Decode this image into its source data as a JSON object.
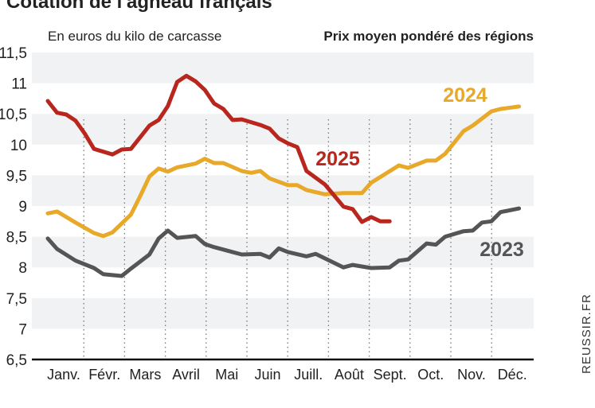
{
  "chart_data": {
    "type": "line",
    "title": "Cotation de l'agneau français",
    "subtitle_left": "En euros du kilo de carcasse",
    "subtitle_right": "Prix moyen pondéré des régions",
    "source": "REUSSIR.FR",
    "ylim": [
      6.5,
      11.5
    ],
    "yticks": [
      "6,5",
      "7",
      "7,5",
      "8",
      "8,5",
      "9",
      "9,5",
      "10",
      "10,5",
      "11",
      "11,5"
    ],
    "categories": [
      "Janv.",
      "Févr.",
      "Mars",
      "Avril",
      "Mai",
      "Juin",
      "Juill.",
      "Août",
      "Sept.",
      "Oct.",
      "Nov.",
      "Déc."
    ],
    "x_unit": "week",
    "grid": "alternating horizontal bands, dotted vertical month separators",
    "series": [
      {
        "name": "2025",
        "color": "#b8261e",
        "points": [
          [
            1,
            10.71
          ],
          [
            2,
            10.52
          ],
          [
            3,
            10.49
          ],
          [
            4,
            10.39
          ],
          [
            5,
            10.18
          ],
          [
            6,
            9.93
          ],
          [
            8,
            9.84
          ],
          [
            9,
            9.92
          ],
          [
            10,
            9.93
          ],
          [
            12,
            10.31
          ],
          [
            13,
            10.4
          ],
          [
            14,
            10.63
          ],
          [
            15,
            11.02
          ],
          [
            16,
            11.12
          ],
          [
            17,
            11.03
          ],
          [
            18,
            10.89
          ],
          [
            19,
            10.67
          ],
          [
            20,
            10.58
          ],
          [
            21,
            10.4
          ],
          [
            22,
            10.41
          ],
          [
            24,
            10.32
          ],
          [
            25,
            10.26
          ],
          [
            26,
            10.1
          ],
          [
            27,
            10.02
          ],
          [
            28,
            9.96
          ],
          [
            29,
            9.57
          ],
          [
            31,
            9.35
          ],
          [
            33,
            8.99
          ],
          [
            34,
            8.95
          ],
          [
            35,
            8.74
          ],
          [
            36,
            8.82
          ],
          [
            37,
            8.75
          ],
          [
            38,
            8.75
          ]
        ]
      },
      {
        "name": "2024",
        "color": "#e8a82a",
        "points": [
          [
            1,
            8.88
          ],
          [
            2,
            8.91
          ],
          [
            4,
            8.73
          ],
          [
            6,
            8.56
          ],
          [
            7,
            8.51
          ],
          [
            8,
            8.57
          ],
          [
            10,
            8.86
          ],
          [
            11,
            9.16
          ],
          [
            12,
            9.48
          ],
          [
            13,
            9.61
          ],
          [
            14,
            9.56
          ],
          [
            15,
            9.63
          ],
          [
            17,
            9.69
          ],
          [
            18,
            9.77
          ],
          [
            19,
            9.7
          ],
          [
            20,
            9.7
          ],
          [
            22,
            9.57
          ],
          [
            23,
            9.54
          ],
          [
            24,
            9.57
          ],
          [
            25,
            9.45
          ],
          [
            27,
            9.34
          ],
          [
            28,
            9.34
          ],
          [
            29,
            9.26
          ],
          [
            31,
            9.19
          ],
          [
            33,
            9.21
          ],
          [
            35,
            9.21
          ],
          [
            36,
            9.38
          ],
          [
            39,
            9.66
          ],
          [
            40,
            9.62
          ],
          [
            42,
            9.74
          ],
          [
            43,
            9.74
          ],
          [
            44,
            9.85
          ],
          [
            46,
            10.22
          ],
          [
            47,
            10.31
          ],
          [
            49,
            10.54
          ],
          [
            50,
            10.58
          ],
          [
            52,
            10.62
          ]
        ]
      },
      {
        "name": "2023",
        "color": "#555555",
        "points": [
          [
            1,
            8.47
          ],
          [
            2,
            8.3
          ],
          [
            4,
            8.11
          ],
          [
            6,
            7.99
          ],
          [
            7,
            7.89
          ],
          [
            9,
            7.86
          ],
          [
            10,
            7.98
          ],
          [
            12,
            8.21
          ],
          [
            13,
            8.47
          ],
          [
            14,
            8.6
          ],
          [
            15,
            8.48
          ],
          [
            17,
            8.51
          ],
          [
            18,
            8.38
          ],
          [
            19,
            8.33
          ],
          [
            21,
            8.25
          ],
          [
            22,
            8.21
          ],
          [
            24,
            8.22
          ],
          [
            25,
            8.16
          ],
          [
            26,
            8.31
          ],
          [
            27,
            8.25
          ],
          [
            29,
            8.18
          ],
          [
            30,
            8.22
          ],
          [
            33,
            8.0
          ],
          [
            34,
            8.04
          ],
          [
            36,
            7.99
          ],
          [
            38,
            8.0
          ],
          [
            39,
            8.11
          ],
          [
            40,
            8.13
          ],
          [
            42,
            8.39
          ],
          [
            43,
            8.37
          ],
          [
            44,
            8.5
          ],
          [
            46,
            8.59
          ],
          [
            47,
            8.6
          ],
          [
            48,
            8.73
          ],
          [
            49,
            8.75
          ],
          [
            50,
            8.9
          ],
          [
            52,
            8.96
          ]
        ]
      }
    ]
  }
}
